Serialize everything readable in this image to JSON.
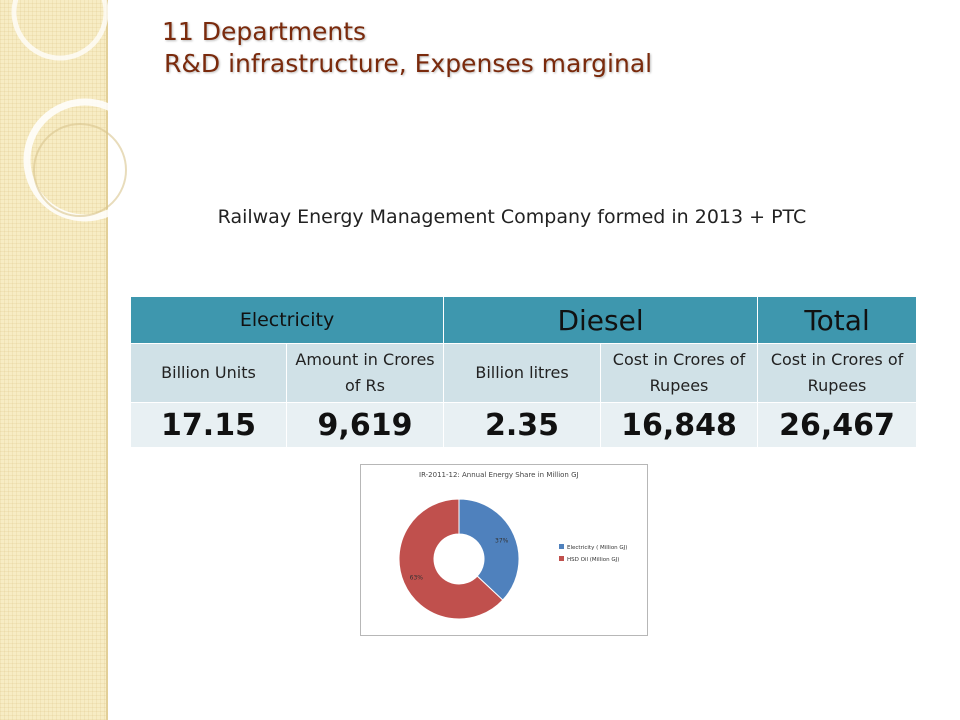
{
  "slide": {
    "title_line1": "11 Departments",
    "title_line2": "R&D infrastructure, Expenses marginal",
    "subtitle": "Railway Energy Management Company formed in 2013 + PTC"
  },
  "table": {
    "group_headers": [
      "Electricity",
      "Diesel",
      "Total"
    ],
    "sub_headers": [
      "Billion Units",
      "Amount in Crores of Rs",
      "Billion litres",
      "Cost in Crores of Rupees",
      "Cost in Crores of Rupees"
    ],
    "values": [
      "17.15",
      "9,619",
      "2.35",
      "16,848",
      "26,467"
    ]
  },
  "colors": {
    "header_blue": "#3e97ae",
    "electricity_blue": "#4f81bd",
    "hsd_red": "#c0504d",
    "title_brown": "#7a2a0c"
  },
  "chart_data": {
    "type": "pie",
    "title": "IR-2011-12: Annual Energy Share in Million GJ",
    "categories": [
      "Electricity ( Million GJ)",
      "HSD Oil (Million GJ)"
    ],
    "values": [
      37,
      63
    ],
    "data_labels": [
      "37%",
      "63%"
    ],
    "colors": [
      "#4f81bd",
      "#c0504d"
    ],
    "donut": true,
    "legend_position": "right"
  }
}
